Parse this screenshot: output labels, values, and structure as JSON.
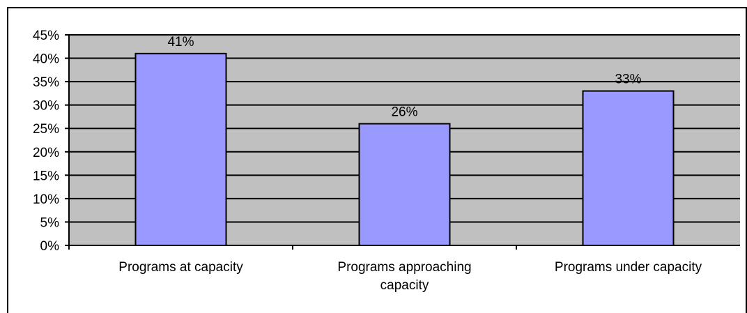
{
  "chart_data": {
    "type": "bar",
    "title": "",
    "xlabel": "",
    "ylabel": "",
    "categories": [
      [
        "Programs at capacity"
      ],
      [
        "Programs approaching",
        "capacity"
      ],
      [
        "Programs under capacity"
      ]
    ],
    "values": [
      41,
      26,
      33
    ],
    "data_labels": [
      "41%",
      "26%",
      "33%"
    ],
    "ylim": [
      0,
      45
    ],
    "y_ticks": [
      0,
      5,
      10,
      15,
      20,
      25,
      30,
      35,
      40,
      45
    ],
    "y_tick_labels": [
      "0%",
      "5%",
      "10%",
      "15%",
      "20%",
      "25%",
      "30%",
      "35%",
      "40%",
      "45%"
    ],
    "grid": true,
    "legend": "none",
    "colors": {
      "bar_fill": "#9999ff",
      "plot_background": "#c0c0c0",
      "gridline": "#000000",
      "bar_stroke": "#000000"
    }
  }
}
